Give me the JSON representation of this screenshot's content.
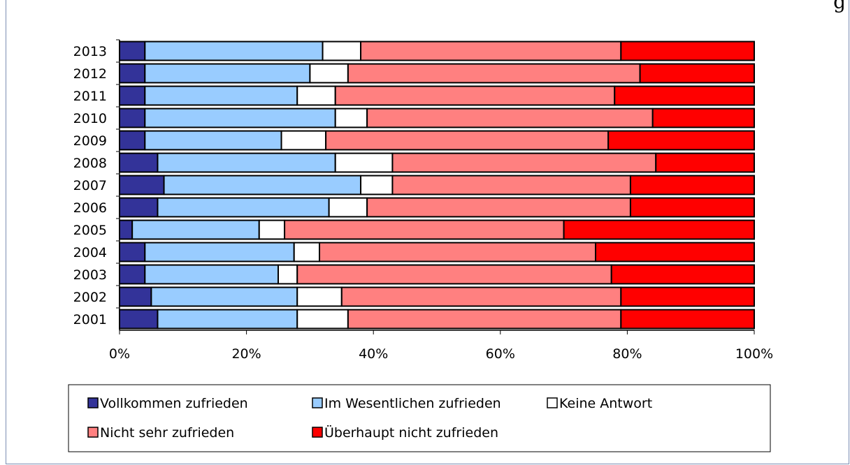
{
  "page": {
    "corner_text": "g"
  },
  "chart_data": {
    "type": "bar",
    "orientation": "horizontal",
    "stacked": "percent",
    "categories": [
      "2013",
      "2012",
      "2011",
      "2010",
      "2009",
      "2008",
      "2007",
      "2006",
      "2005",
      "2004",
      "2003",
      "2002",
      "2001"
    ],
    "series": [
      {
        "name": "Vollkommen zufrieden",
        "color": "#333399",
        "values": [
          4,
          4,
          4,
          4,
          4,
          6,
          7,
          6,
          2,
          4,
          4,
          5,
          6
        ]
      },
      {
        "name": "Im Wesentlichen zufrieden",
        "color": "#99ccff",
        "values": [
          28,
          26,
          24,
          30,
          21.5,
          28,
          31,
          27,
          20,
          23.5,
          21,
          23,
          22
        ]
      },
      {
        "name": "Keine Antwort",
        "color": "#ffffff",
        "values": [
          6,
          6,
          6,
          5,
          7,
          9,
          5,
          6,
          4,
          4,
          3,
          7,
          8
        ]
      },
      {
        "name": "Nicht sehr zufrieden",
        "color": "#ff8080",
        "values": [
          41,
          46,
          44,
          45,
          44.5,
          41.5,
          37.5,
          41.5,
          44,
          43.5,
          49.5,
          44,
          43
        ]
      },
      {
        "name": "Überhaupt nicht zufrieden",
        "color": "#ff0000",
        "values": [
          21,
          18,
          22,
          16,
          23,
          15.5,
          19.5,
          19.5,
          30,
          25,
          22.5,
          21,
          21
        ]
      }
    ],
    "x_ticks": [
      "0%",
      "20%",
      "40%",
      "60%",
      "80%",
      "100%"
    ],
    "xlim": [
      0,
      100
    ],
    "grid": false,
    "legend_position": "bottom"
  }
}
